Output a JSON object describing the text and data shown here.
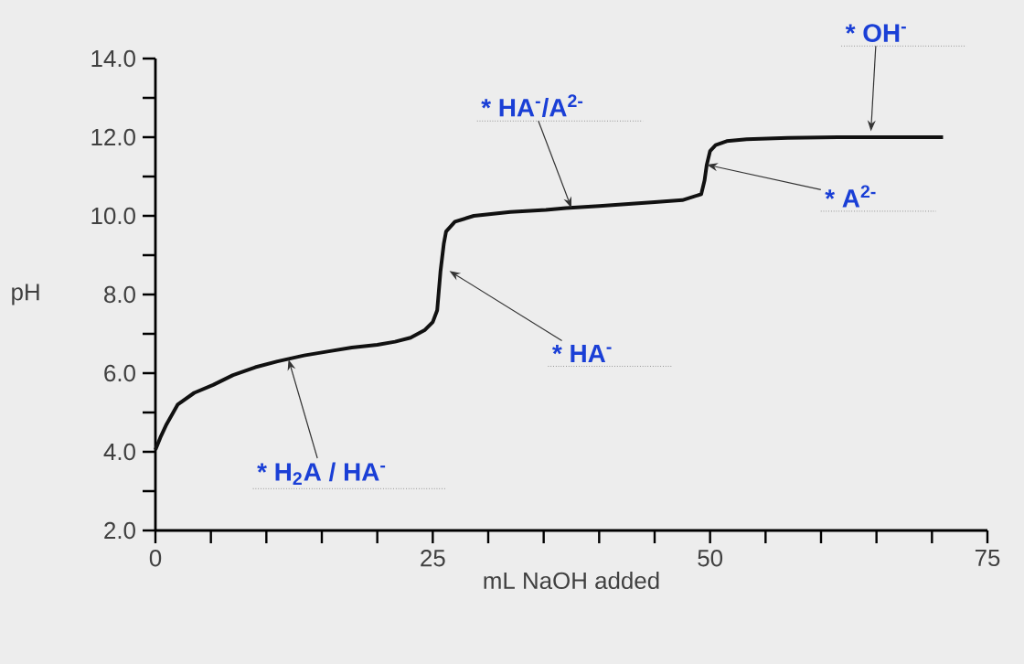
{
  "chart_data": {
    "type": "line",
    "xlabel": "mL NaOH added",
    "ylabel": "pH",
    "x": [
      0,
      0.5,
      1,
      2,
      3.5,
      5.2,
      7,
      9,
      11,
      13.4,
      15.5,
      17.7,
      20,
      21.6,
      23,
      24.3,
      25,
      25.4,
      25.7,
      26,
      26.2,
      27,
      28.7,
      32,
      35.2,
      37,
      40,
      45,
      47.5,
      49.2,
      49.5,
      49.7,
      50,
      50.5,
      51.5,
      53.3,
      57,
      61.5,
      66,
      71
    ],
    "series": [
      {
        "color": "#111111",
        "values": [
          4.05,
          4.4,
          4.7,
          5.2,
          5.5,
          5.7,
          5.95,
          6.15,
          6.3,
          6.45,
          6.55,
          6.65,
          6.72,
          6.8,
          6.9,
          7.1,
          7.3,
          7.6,
          8.6,
          9.3,
          9.6,
          9.85,
          10.0,
          10.1,
          10.15,
          10.2,
          10.25,
          10.35,
          10.4,
          10.55,
          10.9,
          11.3,
          11.65,
          11.8,
          11.9,
          11.95,
          11.98,
          12.0,
          12.0,
          12.0
        ]
      }
    ],
    "xlim": [
      0,
      75
    ],
    "ylim": [
      2,
      14
    ],
    "xticks": [
      0,
      {
        "value": 5,
        "label": null
      },
      {
        "value": 10,
        "label": null
      },
      {
        "value": 15,
        "label": null
      },
      {
        "value": 20,
        "label": null
      },
      25,
      {
        "value": 30,
        "label": null
      },
      {
        "value": 35,
        "label": null
      },
      {
        "value": 40,
        "label": null
      },
      {
        "value": 45,
        "label": null
      },
      50,
      {
        "value": 55,
        "label": null
      },
      {
        "value": 60,
        "label": null
      },
      {
        "value": 65,
        "label": null
      },
      {
        "value": 70,
        "label": null
      },
      75
    ],
    "yticks": [
      {
        "value": 2,
        "label": "2.0"
      },
      {
        "value": 3,
        "label": null
      },
      {
        "value": 4,
        "label": "4.0"
      },
      {
        "value": 5,
        "label": null
      },
      {
        "value": 6,
        "label": "6.0"
      },
      {
        "value": 7,
        "label": null
      },
      {
        "value": 8,
        "label": "8.0"
      },
      {
        "value": 9,
        "label": null
      },
      {
        "value": 10,
        "label": "10.0"
      },
      {
        "value": 11,
        "label": null
      },
      {
        "value": 12,
        "label": "12.0"
      },
      {
        "value": 13,
        "label": null
      },
      {
        "value": 14,
        "label": "14.0"
      }
    ],
    "annotations": [
      {
        "text": "* H$_{2}$A / HA$^{-}$",
        "x": 12,
        "y": 6.35
      },
      {
        "text": "* HA$^{-}$",
        "x": 26.5,
        "y": 8.6
      },
      {
        "text": "* HA$^{-}$/A$^{2-}$",
        "x": 37.5,
        "y": 10.2
      },
      {
        "text": "* A$^{2-}$",
        "x": 49.7,
        "y": 11.3
      },
      {
        "text": "* OH$^{-}$",
        "x": 64.5,
        "y": 12.15
      }
    ]
  }
}
